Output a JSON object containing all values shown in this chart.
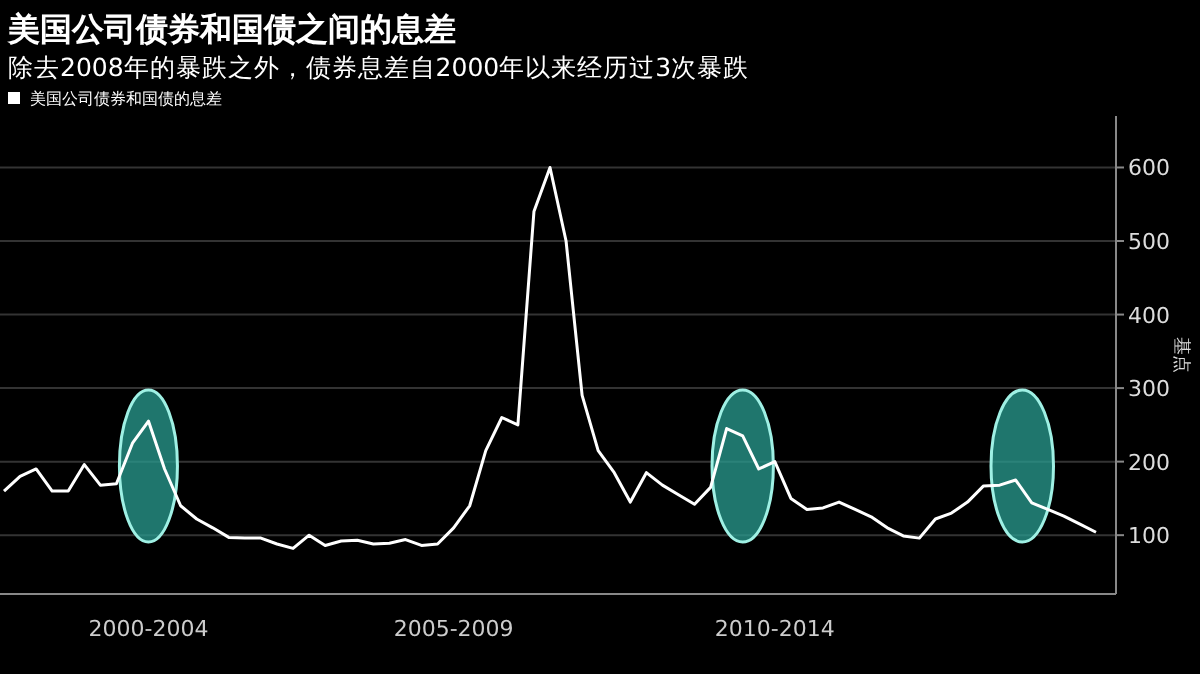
{
  "chart_data": {
    "type": "line",
    "title": "美国公司债券和国债之间的息差",
    "subtitle": "除去2008年的暴跌之外，债券息差自2000年以来经历过3次暴跌",
    "ylabel": "基点",
    "legend": "top left",
    "grid": "y",
    "ylim": [
      20,
      670
    ],
    "yticks": [
      100,
      200,
      300,
      400,
      500,
      600
    ],
    "categories": [
      null,
      null,
      null,
      null,
      null,
      null,
      null,
      null,
      null,
      "2000-2004",
      null,
      null,
      null,
      null,
      null,
      null,
      null,
      null,
      null,
      null,
      null,
      null,
      null,
      null,
      null,
      null,
      null,
      null,
      "2005-2009",
      null,
      null,
      null,
      null,
      null,
      null,
      null,
      null,
      null,
      null,
      null,
      null,
      null,
      null,
      null,
      null,
      null,
      null,
      null,
      "2010-2014",
      null,
      null,
      null,
      null,
      null,
      null,
      null,
      null,
      null,
      null,
      null,
      null,
      null,
      null,
      null,
      null,
      null,
      null,
      null,
      null
    ],
    "series": [
      {
        "name": "美国公司债券和国债的息差",
        "color": "#ffffff",
        "values": [
          160,
          180,
          190,
          160,
          160,
          196,
          168,
          170,
          225,
          255,
          190,
          140,
          122,
          110,
          97,
          96,
          96,
          88,
          82,
          100,
          86,
          92,
          93,
          88,
          89,
          94,
          86,
          88,
          110,
          140,
          215,
          260,
          250,
          540,
          600,
          500,
          290,
          215,
          185,
          145,
          185,
          168,
          155,
          142,
          165,
          245,
          235,
          190,
          200,
          150,
          135,
          137,
          145,
          135,
          125,
          110,
          99,
          96,
          122,
          130,
          145,
          167,
          168,
          175,
          144,
          135,
          126,
          115,
          104
        ]
      }
    ]
  }
}
